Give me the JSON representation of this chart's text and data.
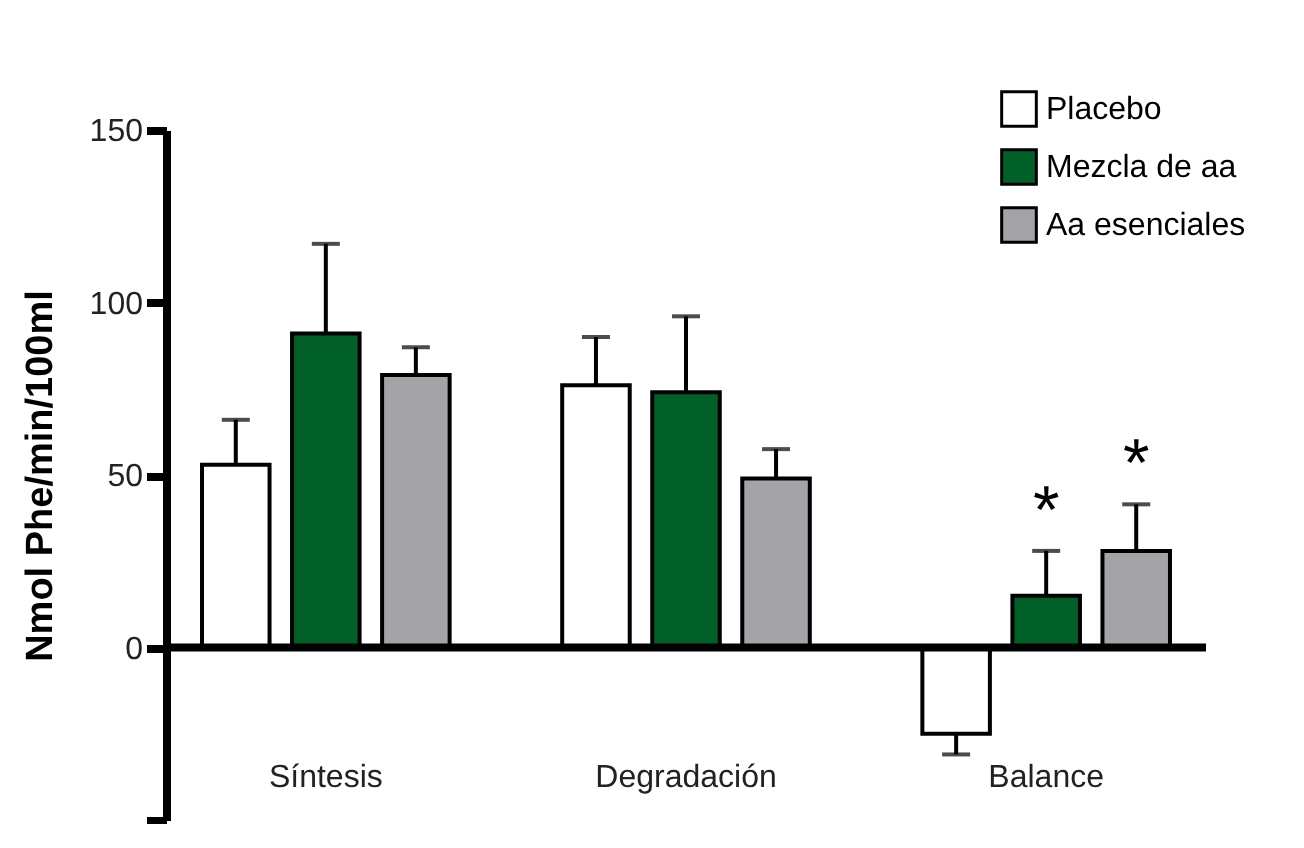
{
  "chart_data": {
    "type": "bar",
    "ylabel": "Nmol Phe/min/100ml",
    "categories": [
      "Síntesis",
      "Degradación",
      "Balance"
    ],
    "series": [
      {
        "name": "Placebo",
        "color": "#ffffff",
        "values": [
          53,
          76,
          -25
        ],
        "errors": [
          [
            53,
            66
          ],
          [
            76,
            90
          ],
          [
            -31,
            -25
          ]
        ]
      },
      {
        "name": "Mezcla de aa",
        "color": "#006028",
        "values": [
          91,
          74,
          15
        ],
        "errors": [
          [
            91,
            117
          ],
          [
            74,
            96
          ],
          [
            15,
            28
          ]
        ]
      },
      {
        "name": "Aa esenciales",
        "color": "#a3a3a8",
        "values": [
          79,
          49,
          28
        ],
        "errors": [
          [
            79,
            87
          ],
          [
            49,
            57.5
          ],
          [
            28,
            41.5
          ]
        ]
      }
    ],
    "ylim": [
      -50,
      150
    ],
    "yticks": [
      {
        "value": -50,
        "label": null
      },
      0,
      50,
      100,
      150
    ],
    "ref_lines": [
      {
        "axis": "y",
        "value": 0,
        "color": "#000000"
      }
    ],
    "annotations": [
      {
        "text": "*",
        "x": "Balance",
        "y": 15
      },
      {
        "text": "*",
        "x": "Balance",
        "y": 28
      }
    ],
    "legend": "top right",
    "grid": false
  }
}
